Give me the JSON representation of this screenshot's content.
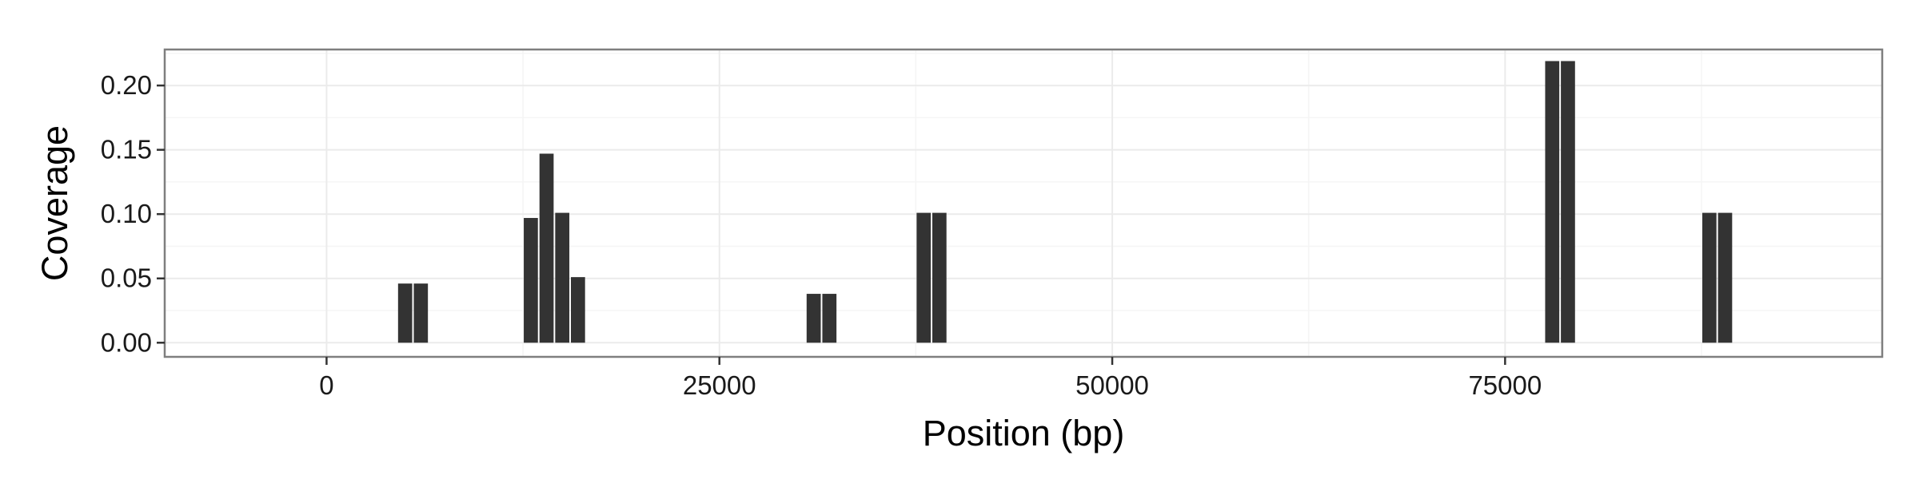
{
  "chart_data": {
    "type": "bar",
    "title": "",
    "xlabel": "Position (bp)",
    "ylabel": "Coverage",
    "xlim": [
      -10300,
      99000
    ],
    "ylim": [
      -0.011,
      0.228
    ],
    "x_ticks": [
      0,
      25000,
      50000,
      75000
    ],
    "x_tick_labels": [
      "0",
      "25000",
      "50000",
      "75000"
    ],
    "y_ticks": [
      0.0,
      0.05,
      0.1,
      0.15,
      0.2
    ],
    "y_tick_labels": [
      "0.00",
      "0.05",
      "0.10",
      "0.15",
      "0.20"
    ],
    "bar_width": 900,
    "grid": true,
    "colors": {
      "bar": "#333333",
      "panel_border": "#7f7f7f",
      "grid_major": "#ebebeb",
      "grid_minor": "#f5f5f5",
      "tick": "#333333"
    },
    "x": [
      5000,
      6000,
      13000,
      14000,
      15000,
      16000,
      31000,
      32000,
      38000,
      39000,
      78000,
      79000,
      88000,
      89000
    ],
    "values": [
      0.046,
      0.046,
      0.097,
      0.147,
      0.101,
      0.051,
      0.038,
      0.038,
      0.101,
      0.101,
      0.219,
      0.219,
      0.101,
      0.101
    ]
  }
}
